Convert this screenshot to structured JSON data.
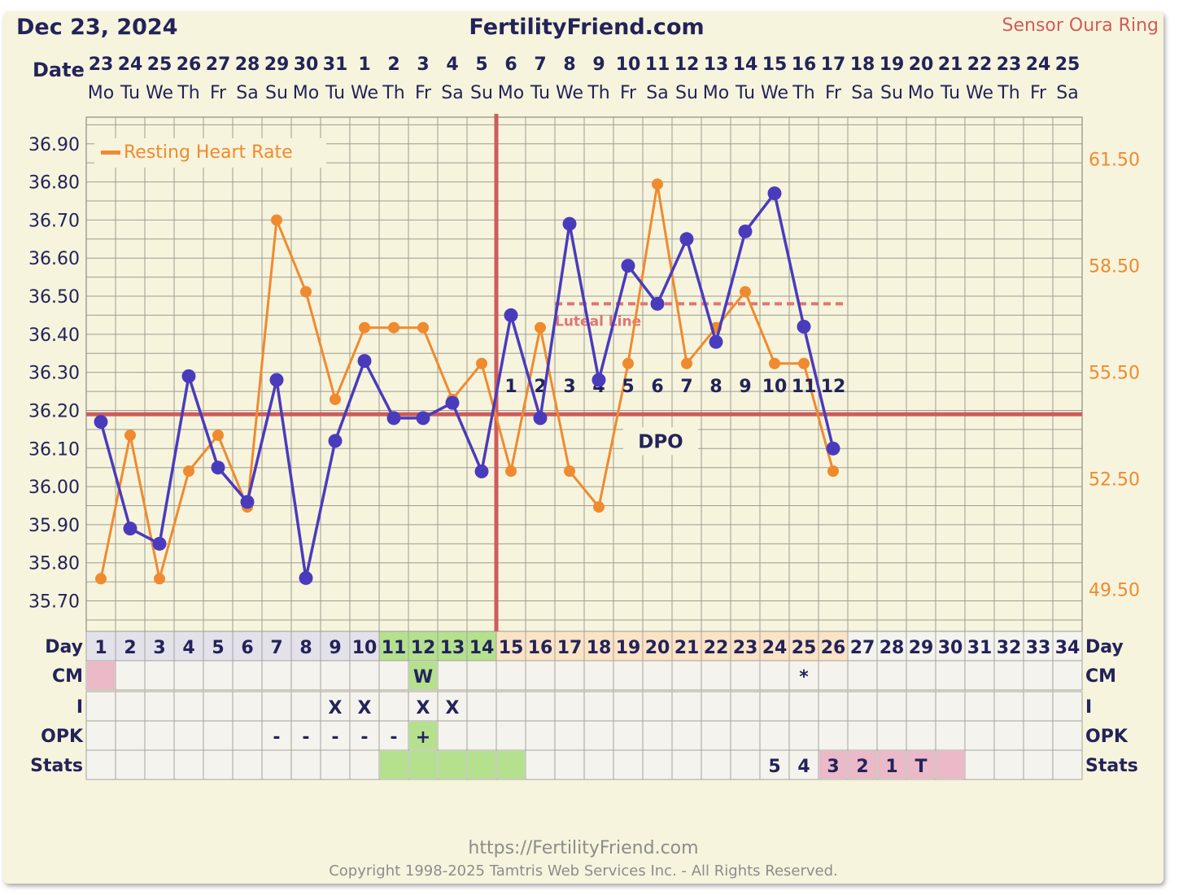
{
  "header": {
    "date_title": "Dec 23, 2024",
    "site_title": "FertilityFriend.com",
    "sensor": "Sensor Oura Ring",
    "date_label": "Date"
  },
  "chart_data": {
    "type": "line",
    "dates": [
      "23",
      "24",
      "25",
      "26",
      "27",
      "28",
      "29",
      "30",
      "31",
      "1",
      "2",
      "3",
      "4",
      "5",
      "6",
      "7",
      "8",
      "9",
      "10",
      "11",
      "12",
      "13",
      "14",
      "15",
      "16",
      "17",
      "18",
      "19",
      "20",
      "21",
      "22",
      "23",
      "24",
      "25"
    ],
    "weekdays": [
      "Mo",
      "Tu",
      "We",
      "Th",
      "Fr",
      "Sa",
      "Su",
      "Mo",
      "Tu",
      "We",
      "Th",
      "Fr",
      "Sa",
      "Su",
      "Mo",
      "Tu",
      "We",
      "Th",
      "Fr",
      "Sa",
      "Su",
      "Mo",
      "Tu",
      "We",
      "Th",
      "Fr",
      "Sa",
      "Su",
      "Mo",
      "Tu",
      "We",
      "Th",
      "Fr",
      "Sa"
    ],
    "days": [
      1,
      2,
      3,
      4,
      5,
      6,
      7,
      8,
      9,
      10,
      11,
      12,
      13,
      14,
      15,
      16,
      17,
      18,
      19,
      20,
      21,
      22,
      23,
      24,
      25,
      26,
      27,
      28,
      29,
      30,
      31,
      32,
      33,
      34
    ],
    "temperature": {
      "values": [
        36.17,
        35.89,
        35.85,
        36.29,
        36.05,
        35.96,
        36.28,
        35.76,
        36.12,
        36.33,
        36.18,
        36.18,
        36.22,
        36.04,
        36.45,
        36.18,
        36.69,
        36.28,
        36.58,
        36.48,
        36.65,
        36.38,
        36.67,
        36.77,
        36.42,
        36.1
      ],
      "ylim": [
        35.62,
        36.97
      ],
      "ticks": [
        "36.90",
        "36.80",
        "36.70",
        "36.60",
        "36.50",
        "36.40",
        "36.30",
        "36.20",
        "36.10",
        "36.00",
        "35.90",
        "35.80",
        "35.70"
      ],
      "coverline": 36.19,
      "color": "#4a3bbd"
    },
    "resting_heart_rate": {
      "name": "Resting Heart Rate",
      "values": [
        49.8,
        53.8,
        49.8,
        52.8,
        53.8,
        51.8,
        59.8,
        57.8,
        54.8,
        56.8,
        56.8,
        56.8,
        54.8,
        55.8,
        52.8,
        56.8,
        52.8,
        51.8,
        55.8,
        60.8,
        55.8,
        56.8,
        57.8,
        55.8,
        55.8,
        52.8
      ],
      "right_ticks": [
        "61.50",
        "58.50",
        "55.50",
        "52.50",
        "49.50"
      ],
      "right_tick_values": [
        61.5,
        58.5,
        55.5,
        52.5,
        49.5
      ],
      "color": "#f08a2e"
    },
    "ovulation_day": 14,
    "luteal_line": {
      "label": "Luteal Line",
      "value": 36.48,
      "from_day": 17,
      "to_day": 26
    },
    "dpo": {
      "label": "DPO",
      "numbers": [
        "1",
        "2",
        "3",
        "4",
        "5",
        "6",
        "7",
        "8",
        "9",
        "10",
        "11",
        "12"
      ],
      "start_day": 15
    }
  },
  "rows": {
    "day_label": "Day",
    "cm_label": "CM",
    "i_label": "I",
    "opk_label": "OPK",
    "stats_label": "Stats",
    "cm": [
      {
        "day": 1,
        "text": "",
        "color": "#ebb9c8"
      },
      {
        "day": 12,
        "text": "W",
        "color": "#b5e08e"
      },
      {
        "day": 25,
        "text": "*",
        "color": ""
      }
    ],
    "intercourse": [
      {
        "day": 9,
        "text": "X"
      },
      {
        "day": 10,
        "text": "X"
      },
      {
        "day": 12,
        "text": "X"
      },
      {
        "day": 13,
        "text": "X"
      }
    ],
    "opk": [
      {
        "day": 7,
        "text": "-"
      },
      {
        "day": 8,
        "text": "-"
      },
      {
        "day": 9,
        "text": "-"
      },
      {
        "day": 10,
        "text": "-"
      },
      {
        "day": 11,
        "text": "-"
      },
      {
        "day": 12,
        "text": "+",
        "color": "#b5e08e"
      }
    ],
    "stats": [
      {
        "day": 11,
        "text": "",
        "color": "#b5e08e"
      },
      {
        "day": 12,
        "text": "",
        "color": "#b5e08e"
      },
      {
        "day": 13,
        "text": "",
        "color": "#b5e08e"
      },
      {
        "day": 14,
        "text": "",
        "color": "#b5e08e"
      },
      {
        "day": 15,
        "text": "",
        "color": "#b5e08e"
      },
      {
        "day": 24,
        "text": "5",
        "color": ""
      },
      {
        "day": 25,
        "text": "4",
        "color": ""
      },
      {
        "day": 26,
        "text": "3",
        "color": "#ebb9c8"
      },
      {
        "day": 27,
        "text": "2",
        "color": "#ebb9c8"
      },
      {
        "day": 28,
        "text": "1",
        "color": "#ebb9c8"
      },
      {
        "day": 29,
        "text": "T",
        "color": "#ebb9c8"
      },
      {
        "day": 30,
        "text": "",
        "color": "#ebb9c8"
      }
    ]
  },
  "footer": {
    "url": "https://FertilityFriend.com",
    "copyright": "Copyright 1998-2025 Tamtris Web Services Inc. - All Rights Reserved."
  }
}
